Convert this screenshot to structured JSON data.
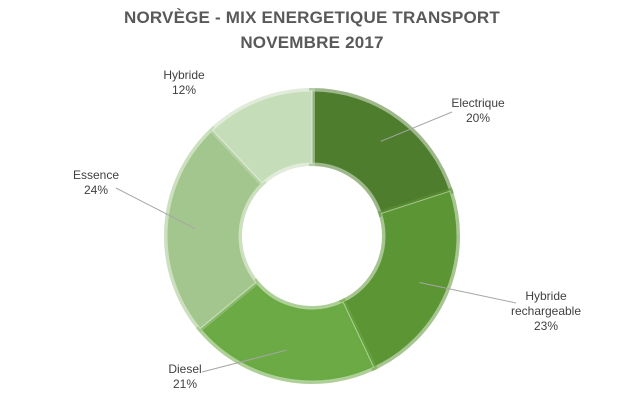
{
  "chart_data": {
    "type": "pie",
    "variant": "donut",
    "title": "NORVÈGE - MIX ENERGETIQUE TRANSPORT",
    "subtitle": "NOVEMBRE 2017",
    "unit": "%",
    "categories": [
      "Electrique",
      "Hybride rechargeable",
      "Diesel",
      "Essence",
      "Hybride"
    ],
    "values": [
      20,
      23,
      21,
      24,
      12
    ],
    "value_labels": [
      "20%",
      "23%",
      "21%",
      "24%",
      "12%"
    ],
    "colors": [
      "#4E7D2E",
      "#5C9634",
      "#6BAA44",
      "#A2C68D",
      "#C6DDBA"
    ],
    "legend": "none"
  }
}
